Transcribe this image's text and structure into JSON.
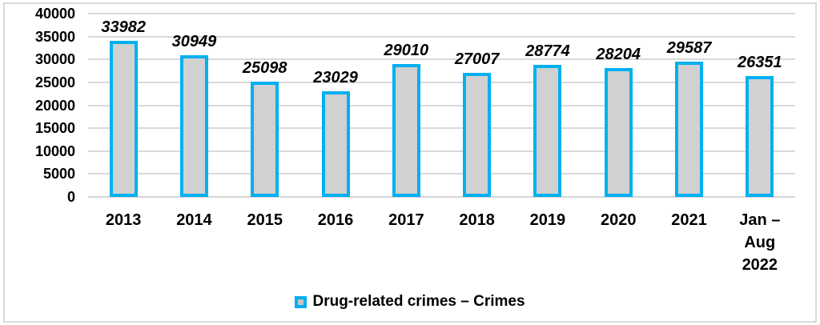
{
  "chart_data": {
    "type": "bar",
    "title": "",
    "categories": [
      "2013",
      "2014",
      "2015",
      "2016",
      "2017",
      "2018",
      "2019",
      "2020",
      "2021",
      "Jan – Aug 2022"
    ],
    "values": [
      33982,
      30949,
      25098,
      23029,
      29010,
      27007,
      28774,
      28204,
      29587,
      26351
    ],
    "data_labels": [
      "33982",
      "30949",
      "25098",
      "23029",
      "29010",
      "27007",
      "28774",
      "28204",
      "29587",
      "26351"
    ],
    "xlabel": "",
    "ylabel": "",
    "ylim": [
      0,
      40000
    ],
    "ytick_step": 5000,
    "yticks": [
      "40000",
      "35000",
      "30000",
      "25000",
      "20000",
      "15000",
      "10000",
      "5000",
      "0"
    ],
    "grid": true,
    "legend": {
      "label": "Drug-related crimes – Crimes",
      "position": "bottom"
    },
    "colors": {
      "bar_fill": "#d1d1d1",
      "bar_border": "#00b0f0",
      "gridline": "#d9d9d9",
      "text": "#000000",
      "frame_border": "#d9d9d9",
      "background": "#ffffff"
    }
  }
}
